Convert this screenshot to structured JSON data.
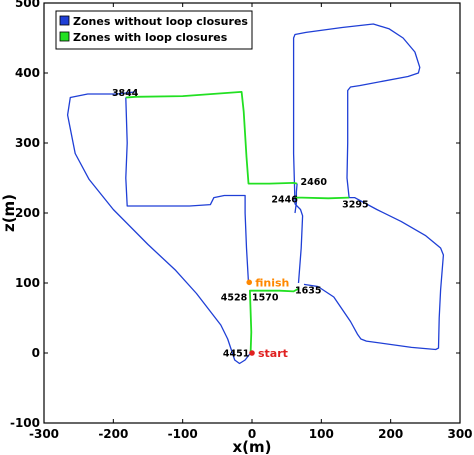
{
  "chart_data": {
    "type": "line",
    "xlabel": "x(m)",
    "ylabel": "z(m)",
    "xlim": [
      -300,
      300
    ],
    "ylim": [
      -100,
      500
    ],
    "xticks": [
      -300,
      -200,
      -100,
      0,
      100,
      200,
      300
    ],
    "yticks": [
      -100,
      0,
      100,
      200,
      300,
      400,
      500
    ],
    "grid": false,
    "legend_position": "top-left",
    "series": [
      {
        "name": "Zones without loop closures",
        "color": "#1f3fd6",
        "segments": [
          [
            [
              67,
              100
            ],
            [
              71,
              150
            ],
            [
              73,
              196
            ],
            [
              70,
              205
            ],
            [
              62,
              213
            ],
            [
              60,
              285
            ],
            [
              60,
              380
            ],
            [
              60,
              450
            ],
            [
              62,
              455
            ],
            [
              78,
              458
            ],
            [
              130,
              465
            ],
            [
              175,
              470
            ],
            [
              198,
              463
            ],
            [
              218,
              450
            ],
            [
              235,
              430
            ],
            [
              242,
              408
            ],
            [
              240,
              400
            ],
            [
              225,
              395
            ],
            [
              155,
              382
            ],
            [
              142,
              380
            ],
            [
              138,
              375
            ],
            [
              138,
              300
            ],
            [
              137,
              250
            ],
            [
              140,
              222
            ],
            [
              148,
              222
            ],
            [
              180,
              205
            ],
            [
              215,
              188
            ],
            [
              250,
              168
            ],
            [
              272,
              150
            ],
            [
              276,
              140
            ],
            [
              272,
              90
            ],
            [
              270,
              50
            ],
            [
              269,
              7
            ],
            [
              265,
              5
            ],
            [
              230,
              8
            ],
            [
              165,
              17
            ],
            [
              157,
              20
            ],
            [
              152,
              27
            ],
            [
              142,
              45
            ],
            [
              118,
              80
            ],
            [
              95,
              95
            ],
            [
              75,
              98
            ]
          ],
          [
            [
              -168,
              373
            ],
            [
              -195,
              370
            ],
            [
              -237,
              370
            ],
            [
              -262,
              365
            ],
            [
              -266,
              340
            ],
            [
              -255,
              285
            ],
            [
              -235,
              248
            ],
            [
              -200,
              205
            ],
            [
              -150,
              155
            ],
            [
              -110,
              118
            ],
            [
              -80,
              85
            ],
            [
              -45,
              40
            ],
            [
              -35,
              20
            ],
            [
              -25,
              -10
            ],
            [
              -18,
              -15
            ],
            [
              -10,
              -10
            ],
            [
              -2,
              0
            ]
          ],
          [
            [
              -5,
              100
            ],
            [
              -8,
              150
            ],
            [
              -10,
              200
            ],
            [
              -10,
              225
            ],
            [
              -40,
              225
            ],
            [
              -55,
              222
            ],
            [
              -60,
              212
            ],
            [
              -90,
              210
            ],
            [
              -180,
              210
            ],
            [
              -182,
              250
            ],
            [
              -180,
              300
            ],
            [
              -182,
              365
            ]
          ],
          [
            [
              65,
              242
            ],
            [
              64,
              230
            ],
            [
              64,
              215
            ],
            [
              62,
              200
            ]
          ]
        ]
      },
      {
        "name": "Zones with loop closures",
        "color": "#22e022",
        "segments": [
          [
            [
              -2,
              0
            ],
            [
              -1,
              30
            ],
            [
              -2,
              60
            ],
            [
              -3,
              89
            ],
            [
              10,
              89
            ],
            [
              40,
              89
            ],
            [
              60,
              88
            ],
            [
              67,
              92
            ]
          ],
          [
            [
              -182,
              365
            ],
            [
              -168,
              366
            ],
            [
              -100,
              367
            ],
            [
              -15,
              373
            ],
            [
              -12,
              345
            ],
            [
              -8,
              280
            ],
            [
              -5,
              242
            ],
            [
              25,
              242
            ],
            [
              60,
              243
            ],
            [
              65,
              242
            ]
          ],
          [
            [
              62,
              222
            ],
            [
              72,
              222
            ],
            [
              110,
              221
            ],
            [
              140,
              222
            ]
          ]
        ]
      }
    ],
    "markers": [
      {
        "label": "start",
        "x": 0,
        "y": 0,
        "color": "#e02020"
      },
      {
        "label": "finish",
        "x": -4,
        "y": 101,
        "color": "#ff8800"
      }
    ],
    "annotations": [
      {
        "text": "3844",
        "x": -202,
        "y": 372
      },
      {
        "text": "2460",
        "x": 70,
        "y": 245
      },
      {
        "text": "2446",
        "x": 28,
        "y": 220
      },
      {
        "text": "3295",
        "x": 130,
        "y": 213
      },
      {
        "text": "1635",
        "x": 62,
        "y": 90
      },
      {
        "text": "4528",
        "x": -45,
        "y": 80
      },
      {
        "text": "1570",
        "x": 0,
        "y": 80
      },
      {
        "text": "4451",
        "x": -42,
        "y": 0
      }
    ]
  }
}
